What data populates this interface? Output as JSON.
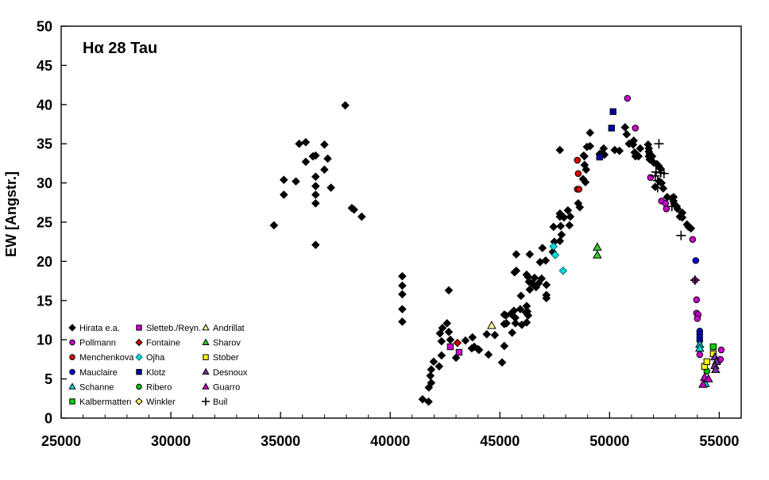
{
  "title": "Hα 28 Tau",
  "chart_data": {
    "type": "scatter",
    "title": "Hα 28 Tau",
    "xlabel": "",
    "ylabel": "EW [Angstr.]",
    "xlim": [
      25000,
      56000
    ],
    "ylim": [
      0,
      50
    ],
    "x_major_ticks": [
      25000,
      30000,
      35000,
      40000,
      45000,
      50000,
      55000
    ],
    "x_minor_step": 1000,
    "y_major_ticks": [
      0,
      5,
      10,
      15,
      20,
      25,
      30,
      35,
      40,
      45,
      50
    ],
    "grid": false,
    "legend_position": "inside-lower-left",
    "legend_columns": 3,
    "series": [
      {
        "name": "Hirata e.a.",
        "marker": "diamond",
        "color": "#000000",
        "outline": "#000000",
        "points": [
          [
            34700,
            24.6
          ],
          [
            35150,
            28.5
          ],
          [
            35150,
            30.4
          ],
          [
            35700,
            30.2
          ],
          [
            35850,
            35.0
          ],
          [
            36150,
            32.7
          ],
          [
            36150,
            35.2
          ],
          [
            36475,
            33.4
          ],
          [
            36600,
            22.1
          ],
          [
            36600,
            27.4
          ],
          [
            36600,
            28.5
          ],
          [
            36600,
            29.6
          ],
          [
            36600,
            30.8
          ],
          [
            36600,
            33.5
          ],
          [
            37000,
            31.7
          ],
          [
            37000,
            34.9
          ],
          [
            37150,
            33.1
          ],
          [
            37300,
            29.4
          ],
          [
            37950,
            39.9
          ],
          [
            38250,
            26.8
          ],
          [
            38350,
            26.6
          ],
          [
            38700,
            25.7
          ],
          [
            40550,
            12.3
          ],
          [
            40550,
            13.9
          ],
          [
            40550,
            15.8
          ],
          [
            40550,
            16.9
          ],
          [
            40550,
            18.1
          ],
          [
            41475,
            2.4
          ],
          [
            41750,
            2.1
          ],
          [
            41760,
            3.9
          ],
          [
            41830,
            5.4
          ],
          [
            41870,
            4.5
          ],
          [
            41870,
            6.2
          ],
          [
            41980,
            7.2
          ],
          [
            42230,
            6.6
          ],
          [
            42270,
            10.8
          ],
          [
            42340,
            8.0
          ],
          [
            42340,
            9.8
          ],
          [
            42380,
            11.5
          ],
          [
            42590,
            12.1
          ],
          [
            42670,
            11.0
          ],
          [
            42670,
            16.3
          ],
          [
            42740,
            10.0
          ],
          [
            43000,
            7.7
          ],
          [
            43430,
            9.9
          ],
          [
            43720,
            8.9
          ],
          [
            43750,
            10.3
          ],
          [
            43830,
            9.1
          ],
          [
            44000,
            8.8
          ],
          [
            44050,
            8.7
          ],
          [
            44400,
            10.7
          ],
          [
            44480,
            8.1
          ],
          [
            44770,
            10.6
          ],
          [
            45100,
            7.1
          ],
          [
            45200,
            9.2
          ],
          [
            45200,
            12.0
          ],
          [
            45200,
            13.2
          ],
          [
            45275,
            13.1
          ],
          [
            45300,
            12.1
          ],
          [
            45500,
            13.3
          ],
          [
            45560,
            10.9
          ],
          [
            45640,
            13.7
          ],
          [
            45670,
            18.6
          ],
          [
            45700,
            12.8
          ],
          [
            45710,
            12.1
          ],
          [
            45745,
            18.8
          ],
          [
            45745,
            20.9
          ],
          [
            45930,
            13.9
          ],
          [
            45960,
            15.6
          ],
          [
            46000,
            11.9
          ],
          [
            46180,
            13.5
          ],
          [
            46220,
            12.2
          ],
          [
            46220,
            14.3
          ],
          [
            46220,
            18.3
          ],
          [
            46250,
            13.6
          ],
          [
            46290,
            13.1
          ],
          [
            46290,
            18.0
          ],
          [
            46325,
            17.4
          ],
          [
            46360,
            16.4
          ],
          [
            46360,
            20.9
          ],
          [
            46470,
            17.2
          ],
          [
            46580,
            17.9
          ],
          [
            46650,
            16.7
          ],
          [
            46760,
            17.2
          ],
          [
            46830,
            19.9
          ],
          [
            46900,
            17.8
          ],
          [
            46940,
            21.7
          ],
          [
            47085,
            20.1
          ],
          [
            47120,
            15.3
          ],
          [
            47120,
            15.7
          ],
          [
            47120,
            17.0
          ],
          [
            47410,
            21.2
          ],
          [
            47445,
            24.4
          ],
          [
            47480,
            22.5
          ],
          [
            47735,
            22.6
          ],
          [
            47735,
            25.7
          ],
          [
            47735,
            26.1
          ],
          [
            47735,
            34.2
          ],
          [
            47770,
            24.5
          ],
          [
            47810,
            23.4
          ],
          [
            47920,
            25.6
          ],
          [
            48100,
            26.5
          ],
          [
            48170,
            24.6
          ],
          [
            48210,
            25.7
          ],
          [
            48570,
            27.4
          ],
          [
            48640,
            26.9
          ],
          [
            48790,
            30.5
          ],
          [
            48820,
            33.5
          ],
          [
            48850,
            33.4
          ],
          [
            48860,
            32.3
          ],
          [
            48900,
            30.1
          ],
          [
            48930,
            31.7
          ],
          [
            48970,
            34.6
          ],
          [
            49110,
            34.7
          ],
          [
            49110,
            36.4
          ],
          [
            49550,
            33.7
          ],
          [
            49620,
            33.7
          ],
          [
            49690,
            33.8
          ],
          [
            49730,
            34.4
          ],
          [
            49765,
            33.6
          ],
          [
            50235,
            34.2
          ],
          [
            50450,
            34.1
          ],
          [
            50705,
            37.1
          ],
          [
            50780,
            36.2
          ],
          [
            50890,
            35.0
          ],
          [
            51070,
            34.9
          ],
          [
            51100,
            35.4
          ],
          [
            51140,
            33.9
          ],
          [
            51180,
            33.4
          ],
          [
            51320,
            33.4
          ],
          [
            51395,
            34.4
          ],
          [
            51755,
            34.9
          ],
          [
            51790,
            33.4
          ],
          [
            51790,
            34.0
          ],
          [
            51790,
            34.4
          ],
          [
            51830,
            33.0
          ],
          [
            51830,
            33.7
          ],
          [
            51940,
            33.4
          ],
          [
            52010,
            32.6
          ],
          [
            52080,
            29.5
          ],
          [
            52155,
            32.4
          ],
          [
            52230,
            32.2
          ],
          [
            52265,
            30.2
          ],
          [
            52265,
            32.0
          ],
          [
            52335,
            31.8
          ],
          [
            52370,
            30.0
          ],
          [
            52445,
            29.3
          ],
          [
            52625,
            28.2
          ],
          [
            52915,
            27.7
          ],
          [
            52915,
            28.2
          ],
          [
            52950,
            27.3
          ],
          [
            53060,
            27.0
          ],
          [
            53095,
            26.7
          ],
          [
            53205,
            25.7
          ],
          [
            53315,
            25.6
          ],
          [
            53315,
            26.2
          ],
          [
            53530,
            24.7
          ],
          [
            53600,
            24.4
          ],
          [
            53710,
            24.2
          ]
        ]
      },
      {
        "name": "Pollmann",
        "marker": "circle",
        "color": "#CC00CC",
        "outline": "#000000",
        "points": [
          [
            50815,
            40.8
          ],
          [
            51175,
            37.0
          ],
          [
            51865,
            30.7
          ],
          [
            52370,
            27.7
          ],
          [
            52550,
            27.4
          ],
          [
            52590,
            26.7
          ],
          [
            53785,
            22.8
          ],
          [
            53895,
            17.6
          ],
          [
            53965,
            15.1
          ],
          [
            53965,
            13.4
          ],
          [
            54040,
            13.2
          ],
          [
            54000,
            12.7
          ],
          [
            54110,
            8.1
          ],
          [
            54980,
            7.3
          ],
          [
            55050,
            7.5
          ],
          [
            55090,
            8.7
          ]
        ]
      },
      {
        "name": "Menchenkova",
        "marker": "circle",
        "color": "#DD0000",
        "outline": "#000000",
        "points": [
          [
            48530,
            32.9
          ],
          [
            48570,
            31.2
          ],
          [
            48530,
            29.2
          ],
          [
            48605,
            29.2
          ]
        ]
      },
      {
        "name": "Mauclaire",
        "marker": "circle",
        "color": "#0000D8",
        "outline": "#000000",
        "points": [
          [
            53930,
            20.1
          ],
          [
            54110,
            11.1
          ],
          [
            54110,
            10.7
          ],
          [
            54110,
            10.3
          ],
          [
            54110,
            9.9
          ]
        ]
      },
      {
        "name": "Schanne",
        "marker": "triangle",
        "color": "#00DDDD",
        "outline": "#000000",
        "points": [
          [
            54110,
            9.4
          ],
          [
            54110,
            8.9
          ],
          [
            54365,
            4.4
          ]
        ]
      },
      {
        "name": "Kalbermatten",
        "marker": "square",
        "color": "#00D800",
        "outline": "#000000",
        "points": [
          [
            54725,
            9.1
          ]
        ]
      },
      {
        "name": "Sletteb./Reyn.",
        "marker": "square",
        "color": "#CC00CC",
        "outline": "#000000",
        "points": [
          [
            42740,
            9.1
          ],
          [
            43140,
            8.4
          ]
        ]
      },
      {
        "name": "Fontaine",
        "marker": "diamond",
        "color": "#CC0000",
        "outline": "#000000",
        "points": [
          [
            43065,
            9.6
          ]
        ]
      },
      {
        "name": "Ojha",
        "marker": "diamond",
        "color": "#00DDDD",
        "outline": "#006666",
        "points": [
          [
            47445,
            21.9
          ],
          [
            47520,
            20.8
          ],
          [
            47880,
            18.8
          ]
        ]
      },
      {
        "name": "Klotz",
        "marker": "square",
        "color": "#0000A8",
        "outline": "#000000",
        "points": [
          [
            49545,
            33.3
          ],
          [
            50090,
            37.0
          ],
          [
            50160,
            39.1
          ]
        ]
      },
      {
        "name": "Ribero",
        "marker": "circle",
        "color": "#00C000",
        "outline": "#000000",
        "points": [
          [
            54435,
            6.0
          ]
        ]
      },
      {
        "name": "Winkler",
        "marker": "diamond",
        "color": "#FFFF66",
        "outline": "#000000",
        "points": []
      },
      {
        "name": "Andrillat",
        "marker": "triangle",
        "color": "#FFFF99",
        "outline": "#000000",
        "points": [
          [
            44625,
            11.8
          ]
        ]
      },
      {
        "name": "Sharov",
        "marker": "triangle",
        "color": "#33CC33",
        "outline": "#000000",
        "points": [
          [
            49440,
            21.8
          ],
          [
            49440,
            20.8
          ]
        ]
      },
      {
        "name": "Stober",
        "marker": "square",
        "color": "#FFFF00",
        "outline": "#000000",
        "points": [
          [
            54330,
            6.6
          ],
          [
            54435,
            7.2
          ],
          [
            54725,
            8.2
          ]
        ]
      },
      {
        "name": "Desnoux",
        "marker": "triangle",
        "color": "#7030A0",
        "outline": "#000000",
        "points": [
          [
            54800,
            7.8
          ],
          [
            54870,
            7.2
          ],
          [
            54800,
            6.7
          ],
          [
            54835,
            6.2
          ]
        ]
      },
      {
        "name": "Guarro",
        "marker": "triangle",
        "color": "#C000C0",
        "outline": "#000000",
        "points": [
          [
            54255,
            4.3
          ],
          [
            54330,
            5.2
          ],
          [
            54510,
            5.0
          ]
        ]
      },
      {
        "name": "Buil",
        "marker": "cross",
        "color": "#000000",
        "outline": "#000000",
        "points": [
          [
            52250,
            35.0
          ],
          [
            52080,
            30.9
          ],
          [
            52120,
            31.4
          ],
          [
            52190,
            30.3
          ],
          [
            52190,
            29.4
          ],
          [
            52335,
            31.3
          ],
          [
            52480,
            31.2
          ],
          [
            52805,
            27.9
          ],
          [
            52840,
            27.0
          ],
          [
            53260,
            23.3
          ],
          [
            53895,
            17.6
          ]
        ]
      }
    ]
  }
}
